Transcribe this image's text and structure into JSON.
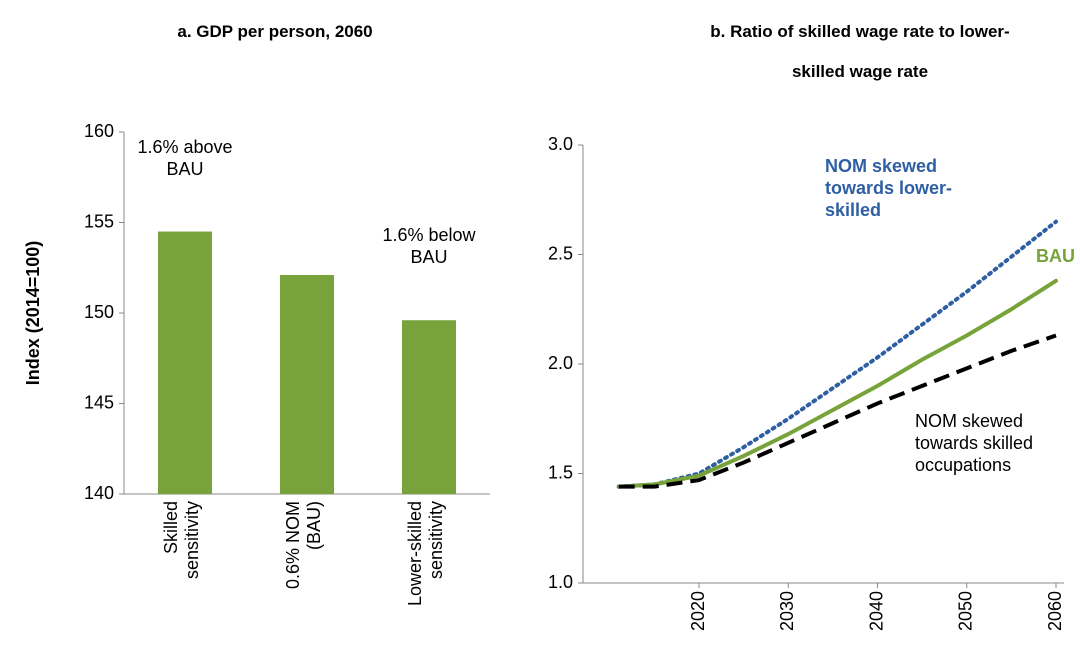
{
  "chart_data": [
    {
      "type": "bar",
      "title": "a. GDP per person, 2060",
      "y_label": "Index  (2014=100)",
      "categories": [
        "Skilled sensitivity",
        "0.6% NOM (BAU)",
        "Lower-skilled sensitivity"
      ],
      "values": [
        154.5,
        152.1,
        149.6
      ],
      "color": "#77a33a",
      "ylim": [
        140,
        160
      ],
      "yticks": [
        140,
        145,
        150,
        155,
        160
      ],
      "annotations": [
        "1.6% above BAU",
        "1.6% below BAU"
      ]
    },
    {
      "type": "line",
      "title": "b. Ratio of skilled wage rate to lower-skilled wage rate",
      "x": [
        2011,
        2015,
        2020,
        2025,
        2030,
        2035,
        2040,
        2045,
        2050,
        2055,
        2060
      ],
      "xlim": [
        2007,
        2060
      ],
      "xticks": [
        2020,
        2030,
        2040,
        2050,
        2060
      ],
      "ylim": [
        1.0,
        3.0
      ],
      "yticks": [
        {
          "value": 1.0,
          "label": "1.0"
        },
        1.5,
        {
          "value": 2.0,
          "label": "2.0"
        },
        2.5,
        {
          "value": 3.0,
          "label": "3.0"
        }
      ],
      "series": [
        {
          "name": "NOM skewed towards lower-skilled",
          "color": "#2e5fa3",
          "style": "dotted",
          "values": [
            1.44,
            1.45,
            1.5,
            1.62,
            1.75,
            1.89,
            2.03,
            2.18,
            2.33,
            2.49,
            2.65
          ]
        },
        {
          "name": "BAU",
          "color": "#77a33a",
          "style": "solid",
          "values": [
            1.44,
            1.45,
            1.49,
            1.58,
            1.68,
            1.79,
            1.9,
            2.02,
            2.13,
            2.25,
            2.38
          ]
        },
        {
          "name": "NOM skewed towards skilled occupations",
          "color": "#000000",
          "style": "dashed",
          "values": [
            1.44,
            1.44,
            1.47,
            1.55,
            1.64,
            1.73,
            1.82,
            1.9,
            1.98,
            2.06,
            2.13
          ]
        }
      ]
    }
  ]
}
